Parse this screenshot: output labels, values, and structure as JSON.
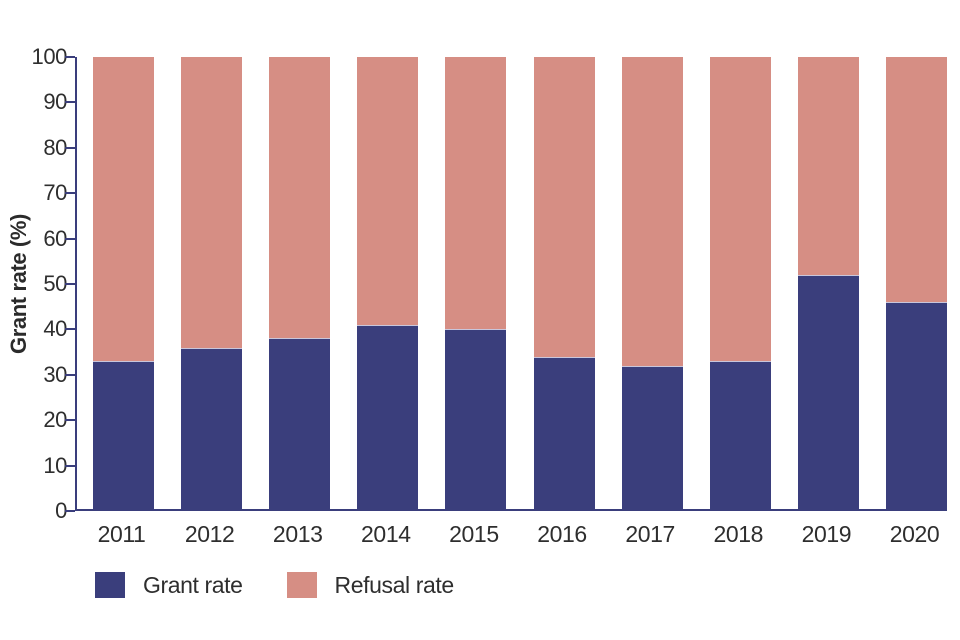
{
  "colors": {
    "grant": "#3a3e7c",
    "refusal": "#d68e84",
    "axis": "#3a3e7c",
    "text": "#2e2e2e",
    "segment_divider": "#c9c6dc"
  },
  "chart_data": {
    "type": "bar",
    "stacked": true,
    "title": "",
    "xlabel": "",
    "ylabel": "Grant rate (%)",
    "ylim": [
      0,
      100
    ],
    "yticks": [
      0,
      10,
      20,
      30,
      40,
      50,
      60,
      70,
      80,
      90,
      100
    ],
    "grid": false,
    "legend_position": "bottom-left",
    "categories": [
      "2011",
      "2012",
      "2013",
      "2014",
      "2015",
      "2016",
      "2017",
      "2018",
      "2019",
      "2020"
    ],
    "series": [
      {
        "name": "Grant rate",
        "color": "#3a3e7c",
        "values": [
          33,
          36,
          38,
          41,
          40,
          34,
          32,
          33,
          52,
          46
        ]
      },
      {
        "name": "Refusal rate",
        "color": "#d68e84",
        "values": [
          67,
          64,
          62,
          59,
          60,
          66,
          68,
          67,
          48,
          54
        ]
      }
    ]
  },
  "legend": {
    "items": [
      {
        "label": "Grant rate"
      },
      {
        "label": "Refusal rate"
      }
    ]
  }
}
